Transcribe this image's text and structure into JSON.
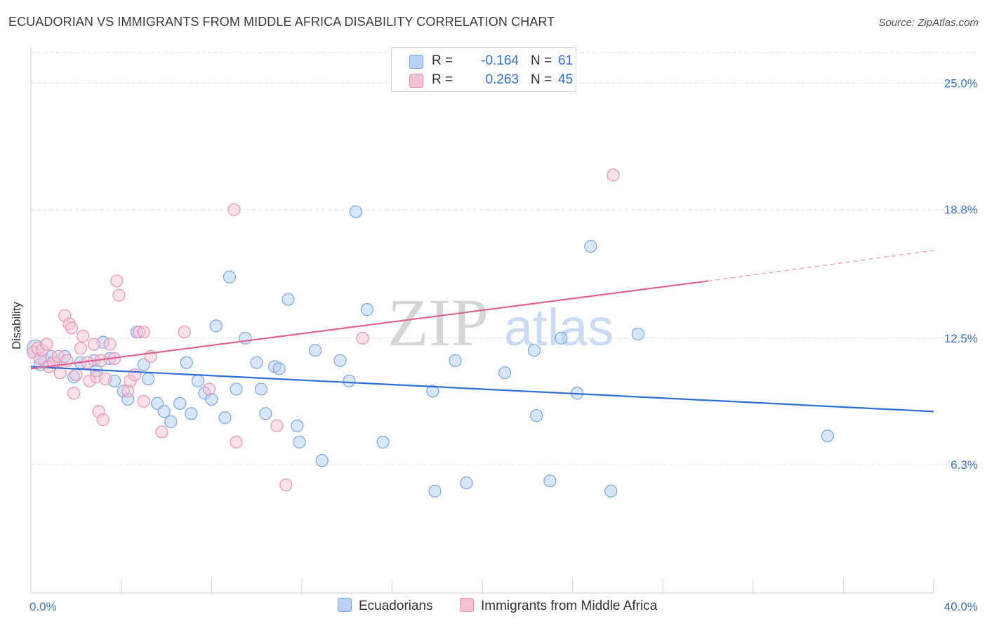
{
  "title": "ECUADORIAN VS IMMIGRANTS FROM MIDDLE AFRICA DISABILITY CORRELATION CHART",
  "source": "Source: ZipAtlas.com",
  "watermark": {
    "zip": "ZIP",
    "atlas": "atlas"
  },
  "legend": {
    "rows": [
      {
        "r_label": "R =",
        "r_value": "-0.164",
        "n_label": "N =",
        "n_value": "61"
      },
      {
        "r_label": "R =",
        "r_value": "0.263",
        "n_label": "N =",
        "n_value": "45"
      }
    ]
  },
  "bottom_legend": [
    "Ecuadorians",
    "Immigrants from Middle Africa"
  ],
  "colors": {
    "blue_fill": "#b8d1f5",
    "blue_stroke": "#7aa6e0",
    "blue_line": "#2f6fd6",
    "pink_fill": "#f7c3d4",
    "pink_stroke": "#ea92b0",
    "pink_line": "#e0638f",
    "tick_label": "#3a74d0",
    "grid": "#e3e3e3"
  },
  "chart_data": {
    "type": "scatter",
    "title": "ECUADORIAN VS IMMIGRANTS FROM MIDDLE AFRICA DISABILITY CORRELATION CHART",
    "ylabel": "Disability",
    "xlim": [
      0,
      40
    ],
    "ylim": [
      0,
      26.5
    ],
    "x_tick_labels": [
      "0.0%",
      "40.0%"
    ],
    "y_ticks": [
      6.3,
      12.5,
      18.8,
      25.0
    ],
    "y_tick_labels": [
      "6.3%",
      "12.5%",
      "18.8%",
      "25.0%"
    ],
    "grid": true,
    "series": [
      {
        "name": "Ecuadorians",
        "r": -0.164,
        "n": 61,
        "trend": {
          "x0": 0,
          "y0": 11.1,
          "x1": 40,
          "y1": 8.9
        },
        "points": [
          [
            0.2,
            12.0
          ],
          [
            0.4,
            11.2
          ],
          [
            0.6,
            11.4
          ],
          [
            0.9,
            11.6
          ],
          [
            1.0,
            11.3
          ],
          [
            1.5,
            11.6
          ],
          [
            1.9,
            10.6
          ],
          [
            2.2,
            11.3
          ],
          [
            2.8,
            11.4
          ],
          [
            2.9,
            10.9
          ],
          [
            3.2,
            12.3
          ],
          [
            3.5,
            11.5
          ],
          [
            3.7,
            10.4
          ],
          [
            4.1,
            9.9
          ],
          [
            4.3,
            9.5
          ],
          [
            4.7,
            12.8
          ],
          [
            5.0,
            11.2
          ],
          [
            5.2,
            10.5
          ],
          [
            5.6,
            9.3
          ],
          [
            5.9,
            8.9
          ],
          [
            6.2,
            8.4
          ],
          [
            6.6,
            9.3
          ],
          [
            6.9,
            11.3
          ],
          [
            7.1,
            8.8
          ],
          [
            7.4,
            10.4
          ],
          [
            7.7,
            9.8
          ],
          [
            8.0,
            9.5
          ],
          [
            8.2,
            13.1
          ],
          [
            8.6,
            8.6
          ],
          [
            8.8,
            15.5
          ],
          [
            9.1,
            10.0
          ],
          [
            9.5,
            12.5
          ],
          [
            10.0,
            11.3
          ],
          [
            10.2,
            10.0
          ],
          [
            10.4,
            8.8
          ],
          [
            10.8,
            11.1
          ],
          [
            11.0,
            11.0
          ],
          [
            11.4,
            14.4
          ],
          [
            11.8,
            8.2
          ],
          [
            11.9,
            7.4
          ],
          [
            12.6,
            11.9
          ],
          [
            12.9,
            6.5
          ],
          [
            13.7,
            11.4
          ],
          [
            14.1,
            10.4
          ],
          [
            14.4,
            18.7
          ],
          [
            14.9,
            13.9
          ],
          [
            15.6,
            7.4
          ],
          [
            17.8,
            9.9
          ],
          [
            17.9,
            5.0
          ],
          [
            18.8,
            11.4
          ],
          [
            19.3,
            5.4
          ],
          [
            21.0,
            10.8
          ],
          [
            22.3,
            11.9
          ],
          [
            22.4,
            8.7
          ],
          [
            23.0,
            5.5
          ],
          [
            23.5,
            12.5
          ],
          [
            24.2,
            9.8
          ],
          [
            24.8,
            17.0
          ],
          [
            25.7,
            5.0
          ],
          [
            26.9,
            12.7
          ],
          [
            35.3,
            7.7
          ]
        ]
      },
      {
        "name": "Immigrants from Middle Africa",
        "r": 0.263,
        "n": 45,
        "trend": {
          "x0": 0,
          "y0": 11.0,
          "x1": 30,
          "y1": 15.3,
          "dash_x1": 40,
          "dash_y1": 16.8
        },
        "points": [
          [
            0.1,
            11.8
          ],
          [
            0.3,
            12.0
          ],
          [
            0.4,
            11.5
          ],
          [
            0.5,
            11.9
          ],
          [
            0.7,
            12.2
          ],
          [
            0.8,
            11.1
          ],
          [
            1.0,
            11.3
          ],
          [
            1.2,
            11.6
          ],
          [
            1.3,
            10.8
          ],
          [
            1.5,
            13.6
          ],
          [
            1.6,
            11.4
          ],
          [
            1.7,
            13.2
          ],
          [
            1.8,
            13.0
          ],
          [
            1.9,
            9.8
          ],
          [
            2.0,
            10.7
          ],
          [
            2.2,
            12.0
          ],
          [
            2.3,
            12.6
          ],
          [
            2.5,
            11.3
          ],
          [
            2.6,
            10.4
          ],
          [
            2.8,
            12.2
          ],
          [
            2.9,
            10.6
          ],
          [
            3.0,
            8.9
          ],
          [
            3.1,
            11.4
          ],
          [
            3.2,
            8.5
          ],
          [
            3.3,
            10.5
          ],
          [
            3.5,
            12.2
          ],
          [
            3.7,
            11.5
          ],
          [
            3.8,
            15.3
          ],
          [
            3.9,
            14.6
          ],
          [
            4.3,
            9.9
          ],
          [
            4.4,
            10.4
          ],
          [
            4.6,
            10.7
          ],
          [
            4.8,
            12.8
          ],
          [
            5.0,
            12.8
          ],
          [
            5.0,
            9.4
          ],
          [
            5.3,
            11.6
          ],
          [
            5.8,
            7.9
          ],
          [
            6.8,
            12.8
          ],
          [
            7.9,
            10.0
          ],
          [
            9.1,
            7.4
          ],
          [
            9.0,
            18.8
          ],
          [
            10.9,
            8.2
          ],
          [
            11.3,
            5.3
          ],
          [
            14.7,
            12.5
          ],
          [
            25.8,
            20.5
          ]
        ]
      }
    ]
  }
}
